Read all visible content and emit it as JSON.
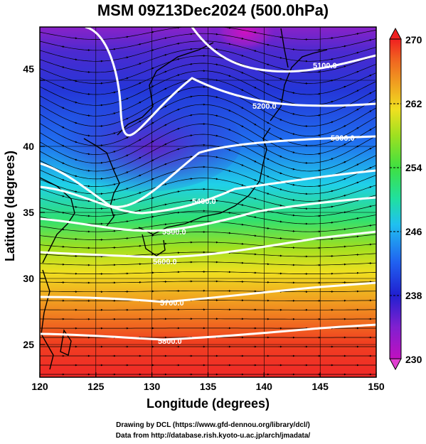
{
  "title": "MSM 09Z13Dec2024 (500.0hPa)",
  "x_axis": {
    "label": "Longitude (degrees)",
    "ticks": [
      "120",
      "125",
      "130",
      "135",
      "140",
      "145",
      "150"
    ],
    "range": [
      120,
      150
    ]
  },
  "y_axis": {
    "label": "Latitude  (degrees)",
    "ticks": [
      "25",
      "30",
      "35",
      "40",
      "45"
    ],
    "range": [
      22.5,
      48
    ]
  },
  "colorbar": {
    "ticks": [
      "230",
      "238",
      "246",
      "254",
      "262",
      "270"
    ],
    "range": [
      230,
      270
    ],
    "colors": [
      "#c010c0",
      "#8020d0",
      "#2020d0",
      "#2060f0",
      "#20c0f0",
      "#20e0a0",
      "#40e040",
      "#a0e020",
      "#f0e020",
      "#f0a020",
      "#f06020",
      "#f02020"
    ]
  },
  "contours": [
    {
      "label": "5100.0"
    },
    {
      "label": "5200.0"
    },
    {
      "label": "5300.0"
    },
    {
      "label": "5400.0"
    },
    {
      "label": "5500.0"
    },
    {
      "label": "5600.0"
    },
    {
      "label": "5700.0"
    },
    {
      "label": "5800.0"
    }
  ],
  "credits": {
    "line1": "Drawing by DCL (https://www.gfd-dennou.org/library/dcl/)",
    "line2": "Data from http://database.rish.kyoto-u.ac.jp/arch/jmadata/"
  }
}
